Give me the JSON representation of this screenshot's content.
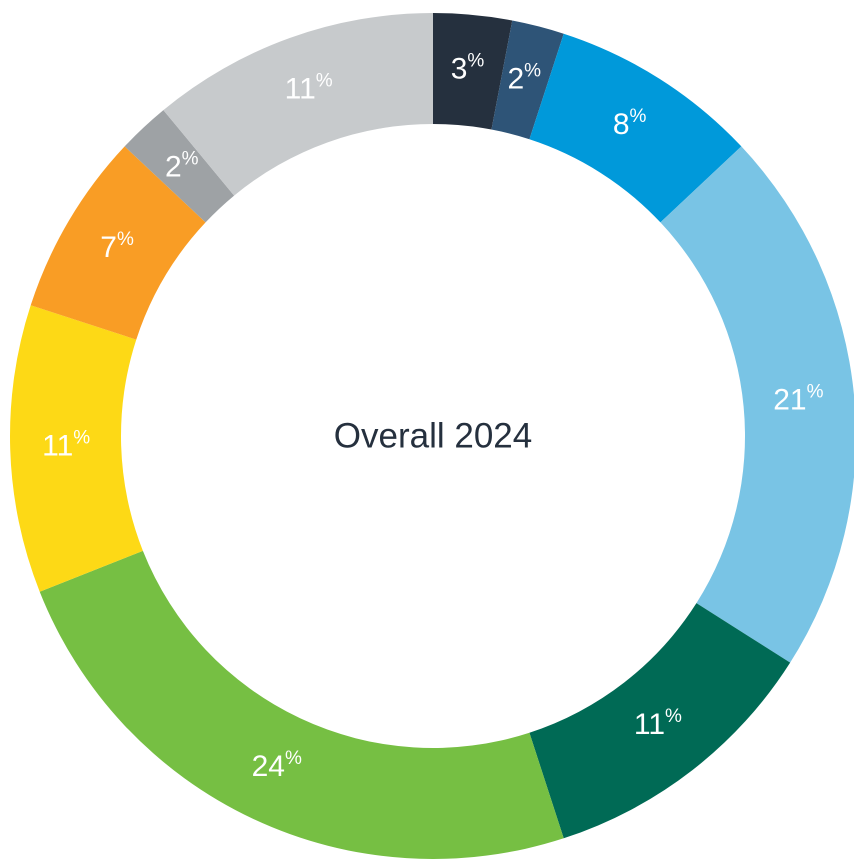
{
  "chart_data": {
    "type": "pie",
    "title": "Overall 2024",
    "values": [
      3,
      2,
      8,
      21,
      11,
      24,
      11,
      7,
      2,
      11
    ],
    "value_labels": [
      "3%",
      "2%",
      "8%",
      "21%",
      "11%",
      "24%",
      "11%",
      "7%",
      "2%",
      "11%"
    ],
    "colors": [
      "#25303e",
      "#2e5477",
      "#0099da",
      "#79c4e5",
      "#006a55",
      "#76bf43",
      "#fdd916",
      "#f99d25",
      "#9ea2a5",
      "#c7cacc"
    ]
  }
}
